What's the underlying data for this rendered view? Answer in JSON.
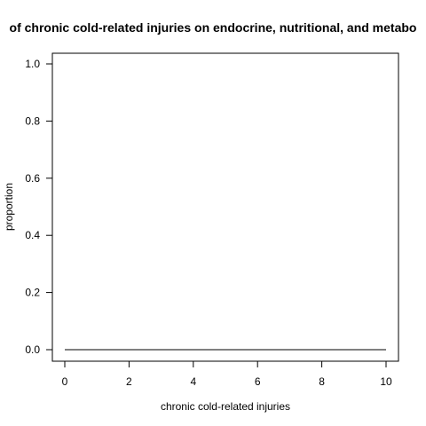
{
  "chart_data": {
    "type": "line",
    "title": "of chronic cold-related injuries on endocrine, nutritional, and metabo",
    "xlabel": "chronic cold-related injuries",
    "ylabel": "proportion",
    "xlim": [
      0,
      10
    ],
    "ylim": [
      0,
      1
    ],
    "xticks": [
      0,
      2,
      4,
      6,
      8,
      10
    ],
    "yticks": [
      0.0,
      0.2,
      0.4,
      0.6,
      0.8,
      1.0
    ],
    "xtick_labels": [
      "0",
      "2",
      "4",
      "6",
      "8",
      "10"
    ],
    "ytick_labels": [
      "0.0",
      "0.2",
      "0.4",
      "0.6",
      "0.8",
      "1.0"
    ],
    "grid": false,
    "series": [
      {
        "x": [
          0,
          1,
          2,
          3,
          4,
          5,
          6,
          7,
          8,
          9,
          10
        ],
        "y": [
          0,
          0,
          0,
          0,
          0,
          0,
          0,
          0,
          0,
          0,
          0
        ],
        "color": "#000000"
      }
    ]
  }
}
